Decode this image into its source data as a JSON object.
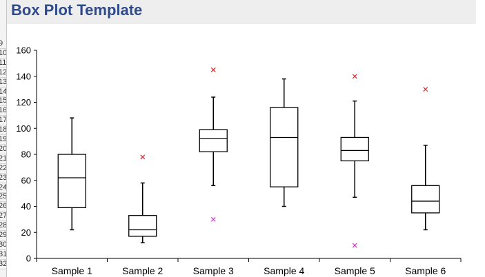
{
  "title_bar": {
    "title": "Box Plot Template"
  },
  "row_headers": [
    "9",
    "10",
    "11",
    "12",
    "13",
    "14",
    "15",
    "16",
    "17",
    "18",
    "19",
    "20",
    "21",
    "22",
    "23",
    "24",
    "25",
    "26",
    "27",
    "28",
    "29",
    "30",
    "31",
    "32"
  ],
  "chart_data": {
    "type": "box",
    "title": "",
    "xlabel": "",
    "ylabel": "",
    "ylim": [
      0,
      160
    ],
    "yticks": [
      0,
      20,
      40,
      60,
      80,
      100,
      120,
      140,
      160
    ],
    "categories": [
      "Sample 1",
      "Sample 2",
      "Sample 3",
      "Sample 4",
      "Sample 5",
      "Sample 6"
    ],
    "boxes": [
      {
        "name": "Sample 1",
        "min": 22,
        "q1": 39,
        "median": 62,
        "q3": 80,
        "max": 108,
        "outliers": []
      },
      {
        "name": "Sample 2",
        "min": 12,
        "q1": 17,
        "median": 22,
        "q3": 33,
        "max": 58,
        "outliers": [
          78
        ]
      },
      {
        "name": "Sample 3",
        "min": 56,
        "q1": 82,
        "median": 92,
        "q3": 99,
        "max": 124,
        "outliers": [
          145,
          30
        ]
      },
      {
        "name": "Sample 4",
        "min": 40,
        "q1": 55,
        "median": 93,
        "q3": 116,
        "max": 138,
        "outliers": []
      },
      {
        "name": "Sample 5",
        "min": 47,
        "q1": 75,
        "median": 83,
        "q3": 93,
        "max": 121,
        "outliers": [
          140,
          10
        ]
      },
      {
        "name": "Sample 6",
        "min": 22,
        "q1": 35,
        "median": 44,
        "q3": 56,
        "max": 87,
        "outliers": [
          130
        ]
      }
    ],
    "outlier_colors": {
      "upper": "#e02020",
      "lower": "#e020e0"
    },
    "grid": false,
    "legend": "none"
  }
}
